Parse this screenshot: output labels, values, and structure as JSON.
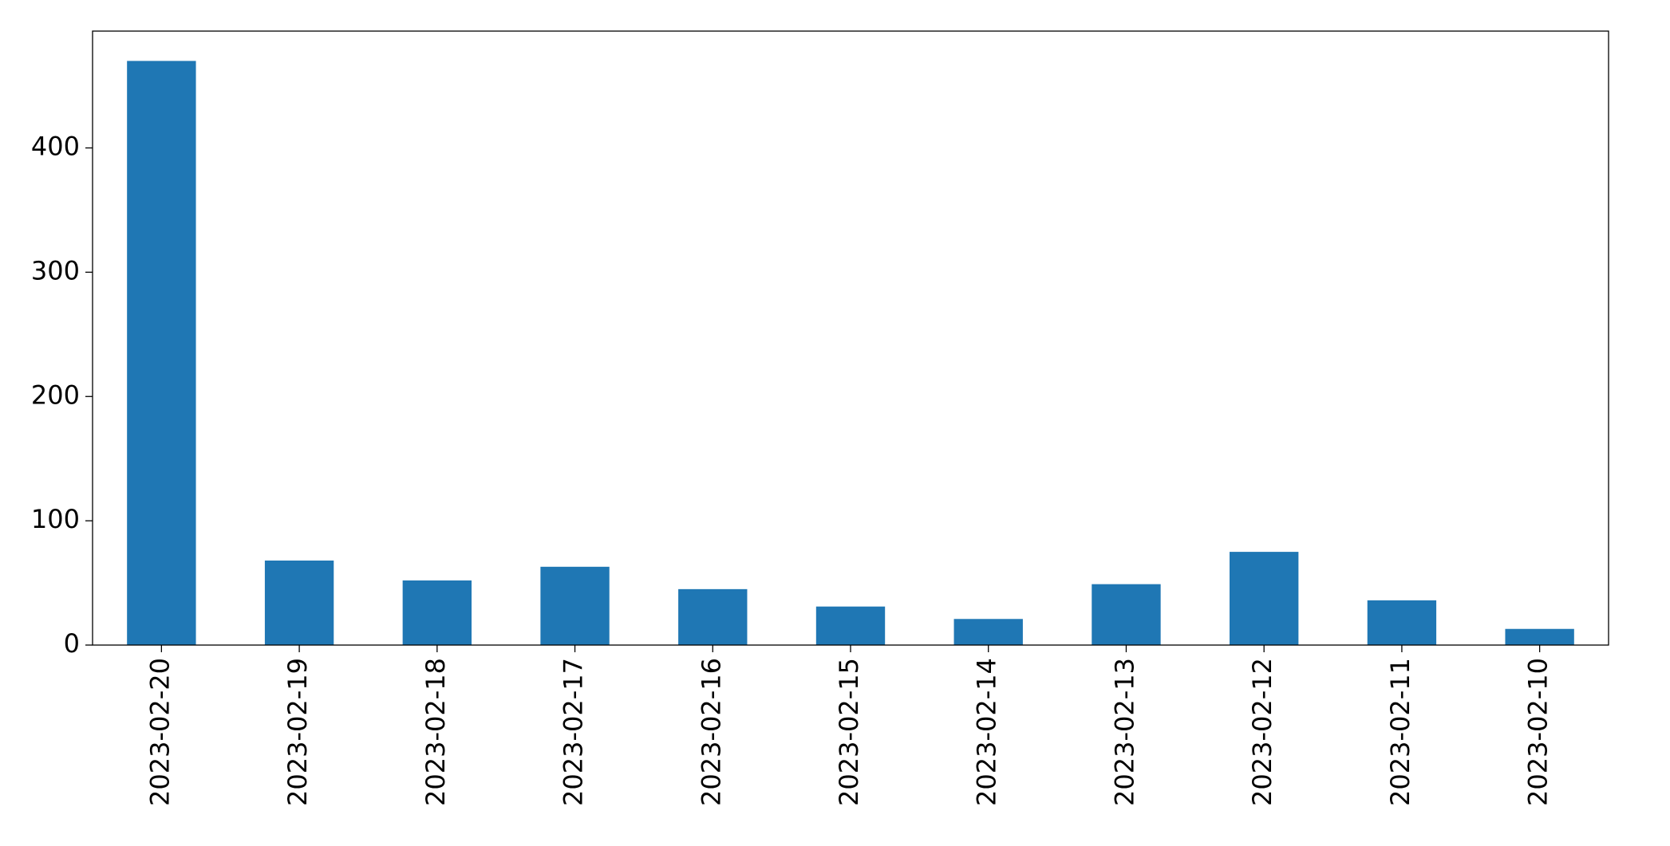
{
  "chart_data": {
    "type": "bar",
    "categories": [
      "2023-02-20",
      "2023-02-19",
      "2023-02-18",
      "2023-02-17",
      "2023-02-16",
      "2023-02-15",
      "2023-02-14",
      "2023-02-13",
      "2023-02-12",
      "2023-02-11",
      "2023-02-10"
    ],
    "values": [
      470,
      68,
      52,
      63,
      45,
      31,
      21,
      49,
      75,
      36,
      13
    ],
    "color": "#1f77b4",
    "ylim": [
      0,
      494
    ],
    "yticks": [
      0,
      100,
      200,
      300,
      400
    ],
    "grid": false
  }
}
